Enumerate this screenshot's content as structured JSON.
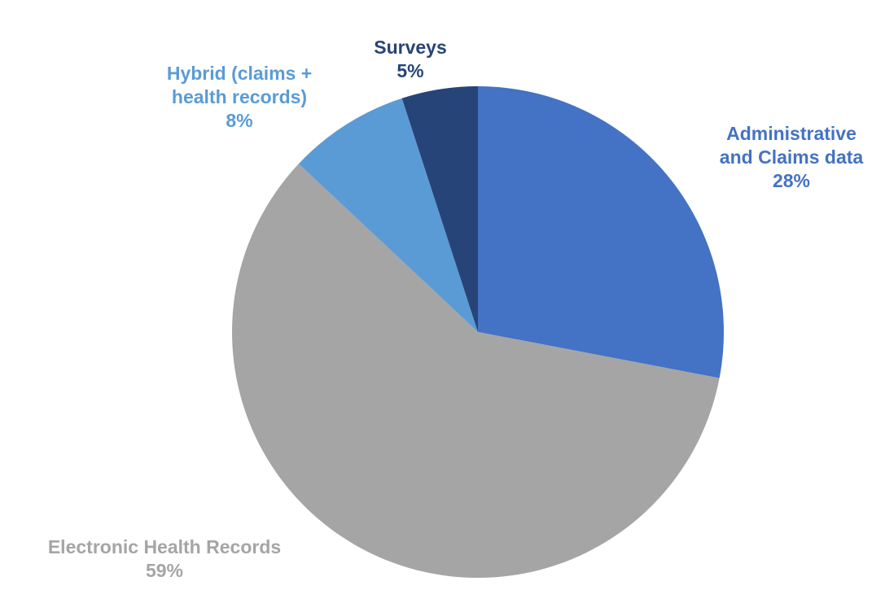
{
  "chart_data": {
    "type": "pie",
    "slices": [
      {
        "name": "Administrative and Claims data",
        "value": 28,
        "color": "#4472C4",
        "label_lines": [
          "Administrative",
          "and Claims data",
          "28%"
        ]
      },
      {
        "name": "Electronic Health Records",
        "value": 59,
        "color": "#A5A5A5",
        "label_lines": [
          "Electronic Health Records",
          "59%"
        ]
      },
      {
        "name": "Hybrid (claims + health records)",
        "value": 8,
        "color": "#5B9BD5",
        "label_lines": [
          "Hybrid (claims +",
          "health records)",
          "8%"
        ]
      },
      {
        "name": "Surveys",
        "value": 5,
        "color": "#264478",
        "label_lines": [
          "Surveys",
          "5%"
        ]
      }
    ],
    "start_angle": "12 o'clock",
    "direction": "clockwise",
    "legend": "none"
  }
}
